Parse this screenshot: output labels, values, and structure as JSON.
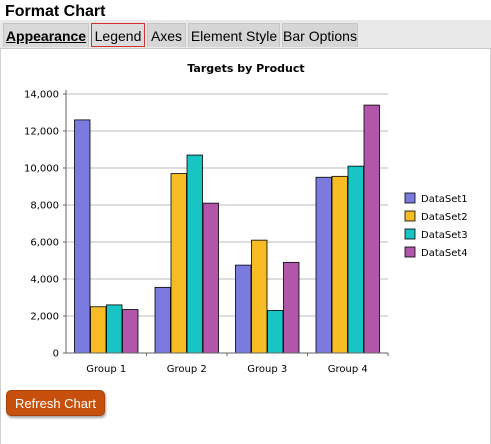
{
  "page": {
    "title": "Format Chart"
  },
  "tabs": [
    {
      "label": "Appearance"
    },
    {
      "label": "Legend"
    },
    {
      "label": "Axes"
    },
    {
      "label": "Element Style"
    },
    {
      "label": "Bar Options"
    }
  ],
  "refresh_label": "Refresh Chart",
  "chart_data": {
    "type": "bar",
    "title": "Targets by Product",
    "xlabel": "",
    "ylabel": "",
    "categories": [
      "Group 1",
      "Group 2",
      "Group 3",
      "Group 4"
    ],
    "ylim": [
      0,
      14000
    ],
    "yticks": [
      0,
      2000,
      4000,
      6000,
      8000,
      10000,
      12000,
      14000
    ],
    "ytick_labels": [
      "0",
      "2,000",
      "4,000",
      "6,000",
      "8,000",
      "10,000",
      "12,000",
      "14,000"
    ],
    "grid": true,
    "legend": "right",
    "series": [
      {
        "name": "DataSet1",
        "color": "#7b7bdf",
        "values": [
          12600,
          3550,
          4750,
          9500
        ]
      },
      {
        "name": "DataSet2",
        "color": "#f7bb23",
        "values": [
          2500,
          9700,
          6100,
          9550
        ]
      },
      {
        "name": "DataSet3",
        "color": "#17c5c5",
        "values": [
          2600,
          10700,
          2300,
          10100
        ]
      },
      {
        "name": "DataSet4",
        "color": "#b256a9",
        "values": [
          2350,
          8100,
          4900,
          13400
        ]
      }
    ]
  }
}
